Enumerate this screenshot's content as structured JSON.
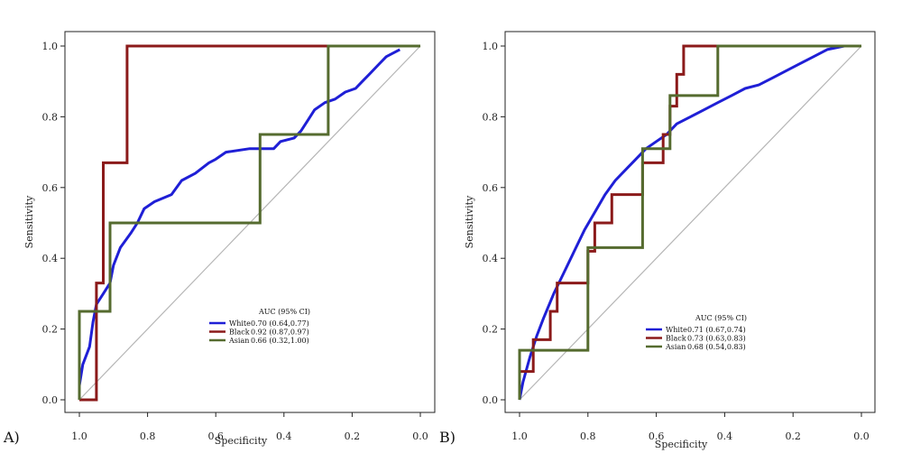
{
  "chart_data": [
    {
      "type": "line",
      "panel_label": "A)",
      "xlabel": "Specificity",
      "ylabel": "Sensitivity",
      "xlim": [
        1.0,
        0.0
      ],
      "ylim": [
        0.0,
        1.0
      ],
      "x_ticks": [
        "1.0",
        "0.8",
        "0.6",
        "0.4",
        "0.2",
        "0.0"
      ],
      "y_ticks": [
        "0.0",
        "0.2",
        "0.4",
        "0.6",
        "0.8",
        "1.0"
      ],
      "diagonal": true,
      "legend": {
        "title": "AUC (95% CI)",
        "position": "bottom-right",
        "entries": [
          {
            "label": "White",
            "value": "0.70 (0.64,0.77)",
            "color": "#1f1fd6"
          },
          {
            "label": "Black",
            "value": "0.92 (0.87,0.97)",
            "color": "#8b1a1a"
          },
          {
            "label": "Asian",
            "value": "0.66 (0.32,1.00)",
            "color": "#556b2f"
          }
        ]
      },
      "series": [
        {
          "name": "White",
          "color": "#1f1fd6",
          "step": false,
          "points": [
            [
              1.0,
              0.0
            ],
            [
              1.0,
              0.04
            ],
            [
              0.99,
              0.1
            ],
            [
              0.97,
              0.15
            ],
            [
              0.96,
              0.22
            ],
            [
              0.95,
              0.27
            ],
            [
              0.93,
              0.3
            ],
            [
              0.91,
              0.33
            ],
            [
              0.9,
              0.38
            ],
            [
              0.88,
              0.43
            ],
            [
              0.85,
              0.47
            ],
            [
              0.83,
              0.5
            ],
            [
              0.81,
              0.54
            ],
            [
              0.78,
              0.56
            ],
            [
              0.73,
              0.58
            ],
            [
              0.7,
              0.62
            ],
            [
              0.66,
              0.64
            ],
            [
              0.62,
              0.67
            ],
            [
              0.6,
              0.68
            ],
            [
              0.57,
              0.7
            ],
            [
              0.5,
              0.71
            ],
            [
              0.47,
              0.71
            ],
            [
              0.43,
              0.71
            ],
            [
              0.41,
              0.73
            ],
            [
              0.37,
              0.74
            ],
            [
              0.35,
              0.76
            ],
            [
              0.33,
              0.79
            ],
            [
              0.31,
              0.82
            ],
            [
              0.28,
              0.84
            ],
            [
              0.25,
              0.85
            ],
            [
              0.22,
              0.87
            ],
            [
              0.19,
              0.88
            ],
            [
              0.17,
              0.9
            ],
            [
              0.15,
              0.92
            ],
            [
              0.12,
              0.95
            ],
            [
              0.1,
              0.97
            ],
            [
              0.08,
              0.98
            ],
            [
              0.06,
              0.99
            ]
          ]
        },
        {
          "name": "Black",
          "color": "#8b1a1a",
          "step": true,
          "points": [
            [
              1.0,
              0.0
            ],
            [
              0.95,
              0.0
            ],
            [
              0.95,
              0.33
            ],
            [
              0.93,
              0.33
            ],
            [
              0.93,
              0.67
            ],
            [
              0.86,
              0.67
            ],
            [
              0.86,
              1.0
            ],
            [
              0.27,
              1.0
            ],
            [
              0.27,
              1.0
            ],
            [
              0.0,
              1.0
            ]
          ]
        },
        {
          "name": "Asian",
          "color": "#556b2f",
          "step": true,
          "points": [
            [
              1.0,
              0.0
            ],
            [
              1.0,
              0.25
            ],
            [
              0.91,
              0.25
            ],
            [
              0.91,
              0.5
            ],
            [
              0.47,
              0.5
            ],
            [
              0.47,
              0.75
            ],
            [
              0.27,
              0.75
            ],
            [
              0.27,
              1.0
            ],
            [
              0.0,
              1.0
            ]
          ]
        }
      ]
    },
    {
      "type": "line",
      "panel_label": "B)",
      "xlabel": "Specificity",
      "ylabel": "Sensitivity",
      "xlim": [
        1.0,
        0.0
      ],
      "ylim": [
        0.0,
        1.0
      ],
      "x_ticks": [
        "1.0",
        "0.8",
        "0.6",
        "0.4",
        "0.2",
        "0.0"
      ],
      "y_ticks": [
        "0.0",
        "0.2",
        "0.4",
        "0.6",
        "0.8",
        "1.0"
      ],
      "diagonal": true,
      "legend": {
        "title": "AUC (95% CI)",
        "position": "bottom-right",
        "entries": [
          {
            "label": "White",
            "value": "0.71 (0.67,0.74)",
            "color": "#1f1fd6"
          },
          {
            "label": "Black",
            "value": "0.73 (0.63,0.83)",
            "color": "#8b1a1a"
          },
          {
            "label": "Asian",
            "value": "0.68 (0.54,0.83)",
            "color": "#556b2f"
          }
        ]
      },
      "series": [
        {
          "name": "White",
          "color": "#1f1fd6",
          "step": false,
          "points": [
            [
              1.0,
              0.0
            ],
            [
              0.99,
              0.05
            ],
            [
              0.97,
              0.12
            ],
            [
              0.95,
              0.18
            ],
            [
              0.93,
              0.23
            ],
            [
              0.9,
              0.3
            ],
            [
              0.87,
              0.36
            ],
            [
              0.84,
              0.42
            ],
            [
              0.81,
              0.48
            ],
            [
              0.78,
              0.53
            ],
            [
              0.75,
              0.58
            ],
            [
              0.72,
              0.62
            ],
            [
              0.69,
              0.65
            ],
            [
              0.66,
              0.68
            ],
            [
              0.63,
              0.71
            ],
            [
              0.6,
              0.73
            ],
            [
              0.57,
              0.75
            ],
            [
              0.54,
              0.78
            ],
            [
              0.5,
              0.8
            ],
            [
              0.46,
              0.82
            ],
            [
              0.42,
              0.84
            ],
            [
              0.38,
              0.86
            ],
            [
              0.34,
              0.88
            ],
            [
              0.3,
              0.89
            ],
            [
              0.26,
              0.91
            ],
            [
              0.22,
              0.93
            ],
            [
              0.18,
              0.95
            ],
            [
              0.14,
              0.97
            ],
            [
              0.1,
              0.99
            ],
            [
              0.05,
              1.0
            ]
          ]
        },
        {
          "name": "Black",
          "color": "#8b1a1a",
          "step": true,
          "points": [
            [
              1.0,
              0.0
            ],
            [
              1.0,
              0.08
            ],
            [
              0.96,
              0.08
            ],
            [
              0.96,
              0.17
            ],
            [
              0.91,
              0.17
            ],
            [
              0.91,
              0.25
            ],
            [
              0.89,
              0.25
            ],
            [
              0.89,
              0.33
            ],
            [
              0.8,
              0.33
            ],
            [
              0.8,
              0.42
            ],
            [
              0.78,
              0.42
            ],
            [
              0.78,
              0.5
            ],
            [
              0.73,
              0.5
            ],
            [
              0.73,
              0.58
            ],
            [
              0.64,
              0.58
            ],
            [
              0.64,
              0.67
            ],
            [
              0.58,
              0.67
            ],
            [
              0.58,
              0.75
            ],
            [
              0.56,
              0.75
            ],
            [
              0.56,
              0.83
            ],
            [
              0.54,
              0.83
            ],
            [
              0.54,
              0.92
            ],
            [
              0.52,
              0.92
            ],
            [
              0.52,
              1.0
            ],
            [
              0.0,
              1.0
            ]
          ]
        },
        {
          "name": "Asian",
          "color": "#556b2f",
          "step": true,
          "points": [
            [
              1.0,
              0.0
            ],
            [
              1.0,
              0.14
            ],
            [
              0.8,
              0.14
            ],
            [
              0.8,
              0.43
            ],
            [
              0.64,
              0.43
            ],
            [
              0.64,
              0.71
            ],
            [
              0.56,
              0.71
            ],
            [
              0.56,
              0.86
            ],
            [
              0.42,
              0.86
            ],
            [
              0.42,
              1.0
            ],
            [
              0.0,
              1.0
            ]
          ]
        }
      ]
    }
  ]
}
